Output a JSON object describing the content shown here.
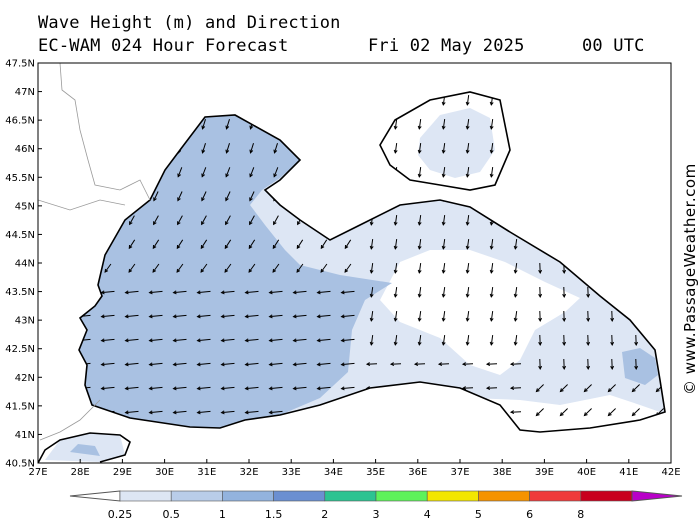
{
  "header": {
    "line1": "Wave Height (m) and Direction",
    "line2": "EC-WAM 024 Hour Forecast",
    "date": "Fri 02 May 2025",
    "time": "00 UTC"
  },
  "credit": "© www.PassageWeather.com",
  "axes": {
    "lat_labels": [
      "47.5N",
      "47N",
      "46.5N",
      "46N",
      "45.5N",
      "45N",
      "44.5N",
      "44N",
      "43.5N",
      "43N",
      "42.5N",
      "42N",
      "41.5N",
      "41N",
      "40.5N"
    ],
    "lon_labels": [
      "27E",
      "28E",
      "29E",
      "30E",
      "31E",
      "32E",
      "33E",
      "34E",
      "35E",
      "36E",
      "37E",
      "38E",
      "39E",
      "40E",
      "41E",
      "42E"
    ],
    "lat_range": [
      40.5,
      47.5
    ],
    "lon_range": [
      27,
      42
    ]
  },
  "colorbar": {
    "labels": [
      "0.25",
      "0.5",
      "1",
      "1.5",
      "2",
      "3",
      "4",
      "5",
      "6",
      "8"
    ],
    "colors": [
      "#dde6f4",
      "#b9cde9",
      "#93b3de",
      "#6b8fd1",
      "#2cc391",
      "#5ef25a",
      "#f3e600",
      "#f59300",
      "#ef3b3b",
      "#c8001e",
      "#b800c8"
    ]
  },
  "legend_classes": {
    "calm": "#ffffff",
    "light": "#dde6f4",
    "moderate": "#a9c1e2"
  }
}
